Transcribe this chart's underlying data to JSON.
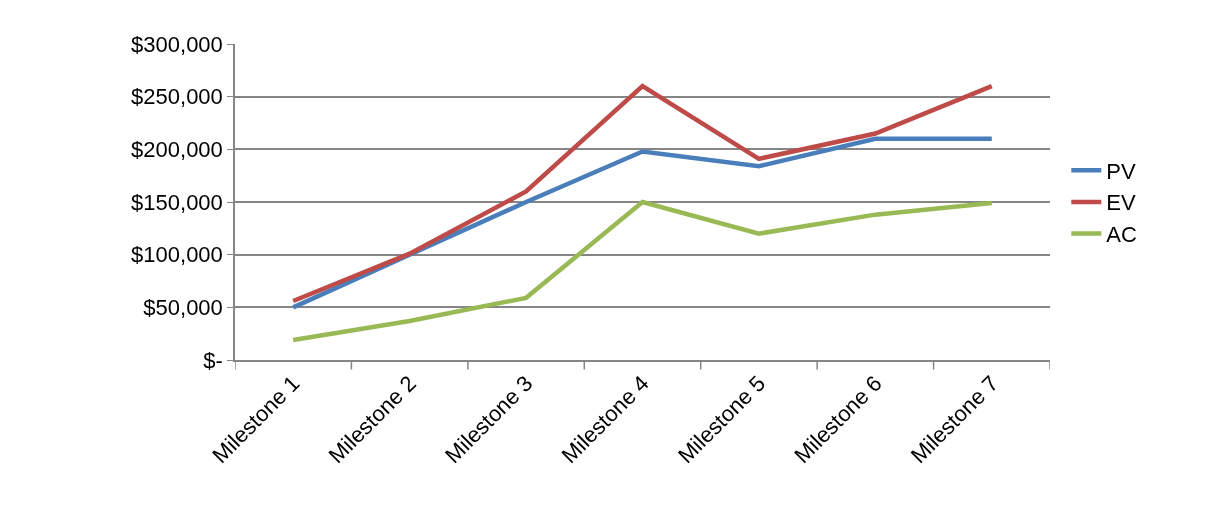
{
  "chart_data": {
    "type": "line",
    "categories": [
      "Milestone 1",
      "Milestone 2",
      "Milestone 3",
      "Milestone 4",
      "Milestone 5",
      "Milestone 6",
      "Milestone 7"
    ],
    "series": [
      {
        "name": "PV",
        "color": "#4a7ebb",
        "values": [
          50000,
          100000,
          150000,
          198000,
          184000,
          210000,
          210000
        ]
      },
      {
        "name": "EV",
        "color": "#be4b48",
        "values": [
          56000,
          101000,
          160000,
          260000,
          191000,
          215000,
          260000
        ]
      },
      {
        "name": "AC",
        "color": "#98b954",
        "values": [
          19000,
          37000,
          59000,
          150000,
          120000,
          138000,
          149000
        ]
      }
    ],
    "ylim": [
      0,
      300000
    ],
    "yticks": [
      {
        "value": 0,
        "label": "$-"
      },
      {
        "value": 50000,
        "label": "$50,000"
      },
      {
        "value": 100000,
        "label": "$100,000"
      },
      {
        "value": 150000,
        "label": "$150,000"
      },
      {
        "value": 200000,
        "label": "$200,000"
      },
      {
        "value": 250000,
        "label": "$250,000"
      },
      {
        "value": 300000,
        "label": "$300,000"
      }
    ],
    "grid": "y",
    "legend": "right",
    "marker": "none",
    "line_style": "solid"
  }
}
